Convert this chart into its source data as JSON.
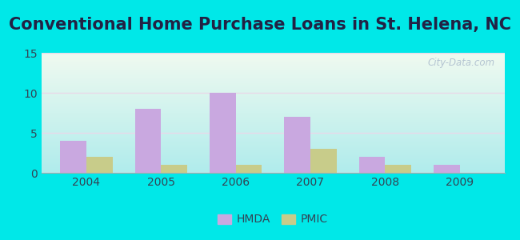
{
  "title": "Conventional Home Purchase Loans in St. Helena, NC",
  "years": [
    2004,
    2005,
    2006,
    2007,
    2008,
    2009
  ],
  "hmda_values": [
    4,
    8,
    10,
    7,
    2,
    1
  ],
  "pmic_values": [
    2,
    1,
    1,
    3,
    1,
    0
  ],
  "hmda_color": "#c9a8e0",
  "pmic_color": "#c8cc8a",
  "ylim": [
    0,
    15
  ],
  "yticks": [
    0,
    5,
    10,
    15
  ],
  "bar_width": 0.35,
  "background_outer": "#00e8e8",
  "bg_top": "#f0faf0",
  "bg_bottom": "#b0ecec",
  "grid_color": "#e8d8e8",
  "watermark": "City-Data.com",
  "legend_labels": [
    "HMDA",
    "PMIC"
  ],
  "title_fontsize": 15,
  "tick_fontsize": 10,
  "title_color": "#222244"
}
